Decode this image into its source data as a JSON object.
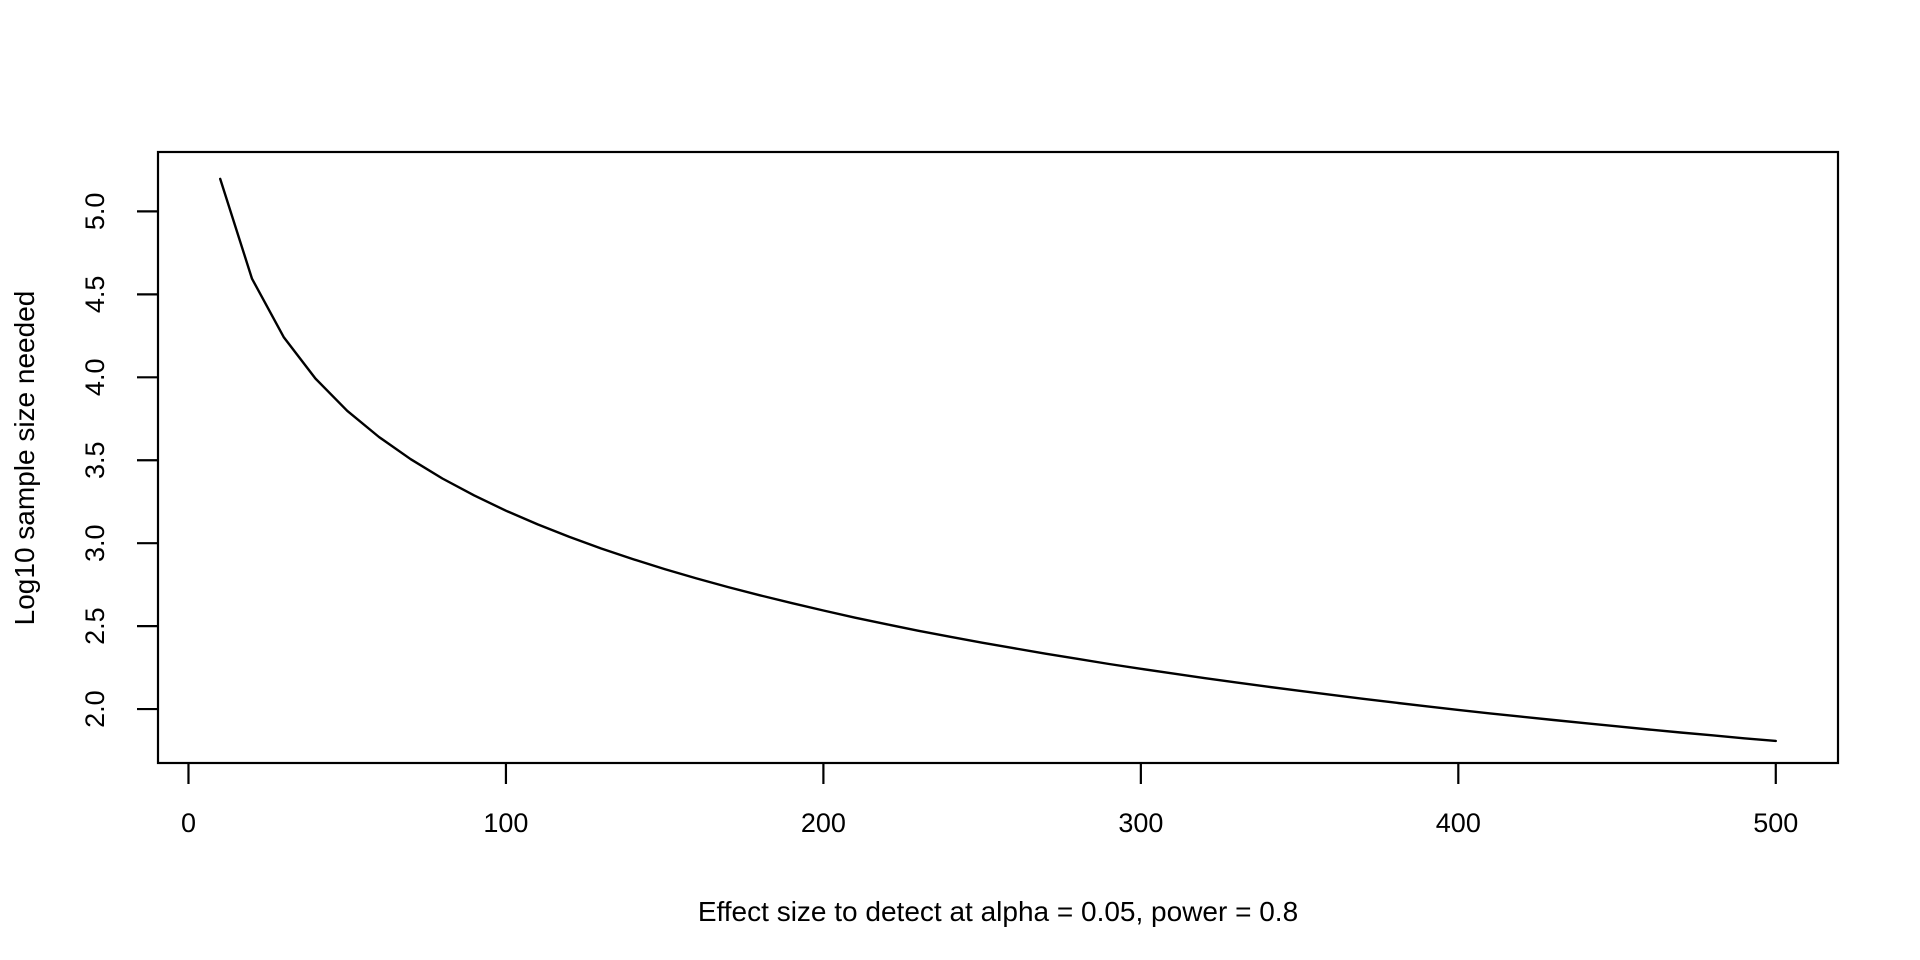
{
  "chart_data": {
    "type": "line",
    "title": "",
    "xlabel": "Effect size to detect at alpha = 0.05, power = 0.8",
    "ylabel": "Log10 sample size needed",
    "grid": false,
    "legend": "none",
    "background_color": "#ffffff",
    "line_color": "#000000",
    "axis_color": "#000000",
    "x_ticks": [
      0,
      100,
      200,
      300,
      400,
      500
    ],
    "x_tick_labels": [
      "0",
      "100",
      "200",
      "300",
      "400",
      "500"
    ],
    "y_ticks": [
      2.0,
      2.5,
      3.0,
      3.5,
      4.0,
      4.5,
      5.0
    ],
    "y_tick_labels": [
      "2.0",
      "2.5",
      "3.0",
      "3.5",
      "4.0",
      "4.5",
      "5.0"
    ],
    "x_axis_range": [
      -9.6,
      519.6
    ],
    "y_axis_range": [
      1.675,
      5.358
    ],
    "xlim": [
      10,
      500
    ],
    "ylim": [
      1.81,
      5.2
    ],
    "series": [
      {
        "name": "log10-sample-size-needed",
        "x": [
          10,
          20,
          30,
          40,
          50,
          60,
          70,
          80,
          90,
          100,
          110,
          120,
          130,
          140,
          150,
          160,
          170,
          180,
          190,
          200,
          210,
          220,
          230,
          240,
          250,
          260,
          270,
          280,
          290,
          300,
          310,
          320,
          330,
          340,
          350,
          360,
          370,
          380,
          390,
          400,
          410,
          420,
          430,
          440,
          450,
          460,
          470,
          480,
          490,
          500
        ],
        "y": [
          5.196,
          4.594,
          4.242,
          3.992,
          3.798,
          3.64,
          3.506,
          3.39,
          3.288,
          3.196,
          3.113,
          3.038,
          2.968,
          2.904,
          2.844,
          2.788,
          2.735,
          2.686,
          2.639,
          2.594,
          2.551,
          2.511,
          2.472,
          2.436,
          2.4,
          2.367,
          2.334,
          2.303,
          2.272,
          2.243,
          2.215,
          2.187,
          2.161,
          2.135,
          2.11,
          2.086,
          2.062,
          2.039,
          2.017,
          1.995,
          1.974,
          1.954,
          1.934,
          1.915,
          1.896,
          1.877,
          1.859,
          1.842,
          1.824,
          1.808
        ]
      }
    ]
  }
}
